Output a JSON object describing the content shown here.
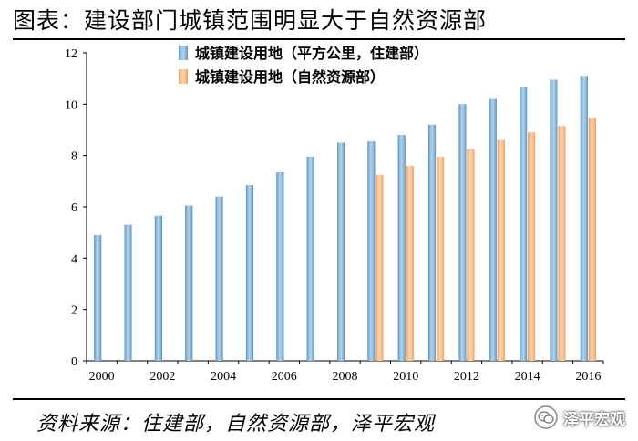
{
  "header": {
    "title": "图表：建设部门城镇范围明显大于自然资源部"
  },
  "footer": {
    "source": "资料来源：住建部，自然资源部，泽平宏观",
    "brand": "泽平宏观",
    "brand_icon": "wechat-bubble-icon"
  },
  "colors": {
    "series_blue": "#4f93c6",
    "series_orange": "#f49a4c",
    "axis": "#000000"
  },
  "chart_data": {
    "type": "bar",
    "categories": [
      "2000",
      "2001",
      "2002",
      "2003",
      "2004",
      "2005",
      "2006",
      "2007",
      "2008",
      "2009",
      "2010",
      "2011",
      "2012",
      "2013",
      "2014",
      "2015",
      "2016"
    ],
    "x_tick_labels": [
      "2000",
      "2002",
      "2004",
      "2006",
      "2008",
      "2010",
      "2012",
      "2014",
      "2016"
    ],
    "series": [
      {
        "name": "城镇建设用地（平方公里，住建部）",
        "color": "#4f93c6",
        "values": [
          4.9,
          5.3,
          5.65,
          6.05,
          6.4,
          6.85,
          7.35,
          7.95,
          8.5,
          8.55,
          8.8,
          9.2,
          10.0,
          10.2,
          10.65,
          10.95,
          11.1
        ]
      },
      {
        "name": "城镇建设用地（自然资源部）",
        "color": "#f49a4c",
        "values": [
          null,
          null,
          null,
          null,
          null,
          null,
          null,
          null,
          null,
          7.25,
          7.6,
          7.95,
          8.25,
          8.6,
          8.9,
          9.15,
          9.45
        ]
      }
    ],
    "ylim": [
      0,
      12
    ],
    "yticks": [
      0,
      2,
      4,
      6,
      8,
      10,
      12
    ],
    "grid": false,
    "legend_position": "top-left"
  }
}
